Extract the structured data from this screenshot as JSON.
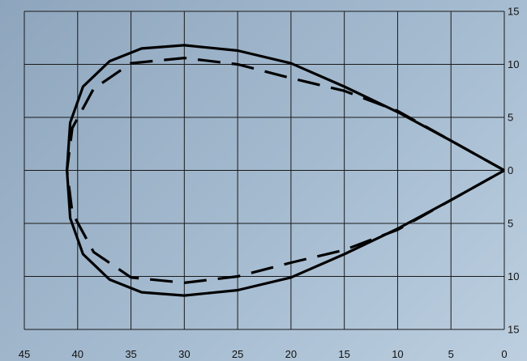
{
  "chart_data": {
    "type": "line",
    "title": "",
    "xlabel": "",
    "ylabel": "",
    "xlim": [
      45,
      0
    ],
    "ylim": [
      -15,
      15
    ],
    "x_ticks": [
      45,
      40,
      35,
      30,
      25,
      20,
      15,
      10,
      5,
      0
    ],
    "y_tick_labels": [
      {
        "value": 15,
        "label": "15"
      },
      {
        "value": 10,
        "label": "10"
      },
      {
        "value": 5,
        "label": "5"
      },
      {
        "value": 0,
        "label": "0"
      },
      {
        "value": -5,
        "label": "5"
      },
      {
        "value": -10,
        "label": "10"
      },
      {
        "value": -15,
        "label": "15"
      }
    ],
    "grid": true,
    "series": [
      {
        "style": "solid",
        "x": [
          0,
          5,
          10,
          15,
          20,
          25,
          30,
          34,
          37,
          39.5,
          40.7,
          41,
          40.7,
          39.5,
          37,
          34,
          30,
          25,
          20,
          15,
          10,
          5,
          0
        ],
        "y": [
          0,
          2.8,
          5.5,
          7.9,
          10.1,
          11.3,
          11.8,
          11.5,
          10.3,
          7.9,
          4.5,
          0,
          -4.5,
          -7.9,
          -10.3,
          -11.5,
          -11.8,
          -11.3,
          -10.1,
          -7.9,
          -5.5,
          -2.8,
          0
        ]
      },
      {
        "style": "dashed",
        "x": [
          0,
          5,
          10,
          15,
          20,
          25,
          30,
          35,
          38.5,
          40.5,
          41,
          40.5,
          38.5,
          35,
          30,
          25,
          20,
          15,
          10,
          5,
          0
        ],
        "y": [
          0,
          2.8,
          5.6,
          7.5,
          8.7,
          10.0,
          10.6,
          10.1,
          7.7,
          4.0,
          0,
          -4.0,
          -7.7,
          -10.1,
          -10.6,
          -10.0,
          -8.7,
          -7.5,
          -5.6,
          -2.8,
          0
        ]
      }
    ]
  }
}
